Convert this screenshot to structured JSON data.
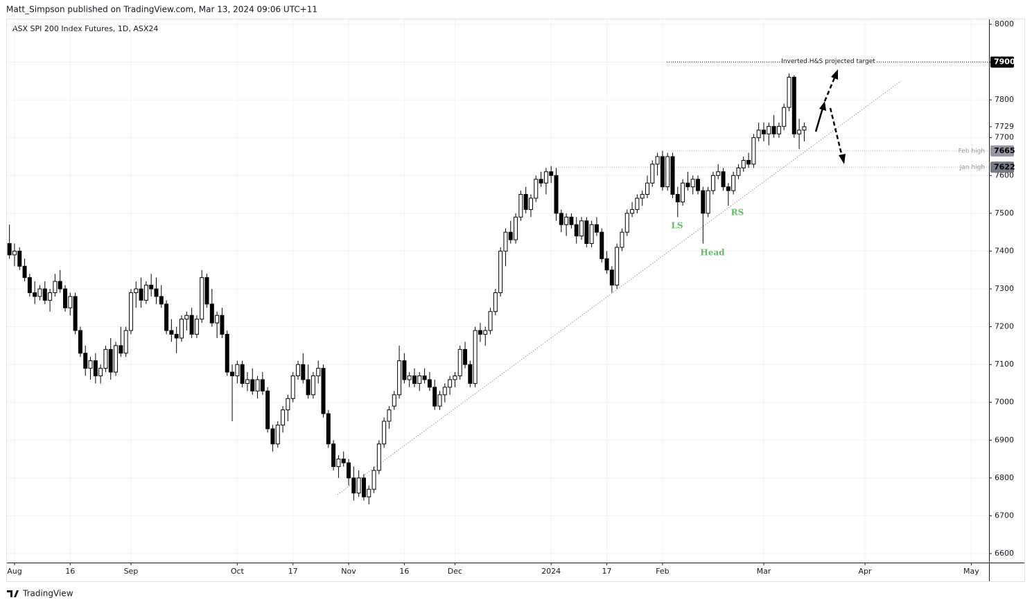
{
  "header": {
    "publisher": "Matt_Simpson published on TradingView.com, Mar 13, 2024 09:06 UTC+11",
    "footer": "TradingView"
  },
  "chart_data": {
    "type": "candlestick",
    "title": "ASX SPI 200 Index Futures, 1D, ASX24",
    "ylim": [
      6600,
      8000
    ],
    "yticks": [
      6600,
      6700,
      6800,
      6900,
      7000,
      7100,
      7200,
      7300,
      7400,
      7500,
      7600,
      7700,
      7800,
      7900,
      8000
    ],
    "xlim": [
      -0.5,
      193.5
    ],
    "xticks": [
      {
        "value": 1,
        "label": "Aug"
      },
      {
        "value": 12,
        "label": "16"
      },
      {
        "value": 24,
        "label": "Sep"
      },
      {
        "value": 45,
        "label": "Oct"
      },
      {
        "value": 56,
        "label": "17"
      },
      {
        "value": 67,
        "label": "Nov"
      },
      {
        "value": 78,
        "label": "16"
      },
      {
        "value": 88,
        "label": "Dec"
      },
      {
        "value": 107,
        "label": "2024"
      },
      {
        "value": 118,
        "label": "17"
      },
      {
        "value": 129,
        "label": "Feb"
      },
      {
        "value": 149,
        "label": "Mar"
      },
      {
        "value": 169,
        "label": "Apr"
      },
      {
        "value": 190,
        "label": "May"
      }
    ],
    "grid": true,
    "up_color": "#ffffff",
    "down_color": "#000000",
    "last_price": 7729,
    "levels": [
      {
        "label": "Inverted H&S projected target",
        "value": 7900
      },
      {
        "label": "Feb high",
        "value": 7665
      },
      {
        "label": "Jan high",
        "value": 7622
      }
    ],
    "annotations": [
      "LS",
      "Head",
      "RS"
    ],
    "ohlc": [
      [
        7420,
        7470,
        7380,
        7390
      ],
      [
        7390,
        7420,
        7360,
        7400
      ],
      [
        7400,
        7410,
        7350,
        7360
      ],
      [
        7360,
        7380,
        7320,
        7330
      ],
      [
        7330,
        7340,
        7280,
        7290
      ],
      [
        7290,
        7320,
        7260,
        7280
      ],
      [
        7280,
        7310,
        7270,
        7300
      ],
      [
        7300,
        7320,
        7260,
        7270
      ],
      [
        7270,
        7300,
        7240,
        7290
      ],
      [
        7290,
        7340,
        7280,
        7320
      ],
      [
        7320,
        7350,
        7290,
        7300
      ],
      [
        7300,
        7310,
        7240,
        7250
      ],
      [
        7250,
        7290,
        7230,
        7280
      ],
      [
        7280,
        7290,
        7180,
        7190
      ],
      [
        7190,
        7200,
        7120,
        7130
      ],
      [
        7130,
        7150,
        7070,
        7090
      ],
      [
        7090,
        7120,
        7060,
        7110
      ],
      [
        7110,
        7130,
        7050,
        7070
      ],
      [
        7070,
        7100,
        7050,
        7090
      ],
      [
        7090,
        7150,
        7080,
        7140
      ],
      [
        7140,
        7170,
        7060,
        7080
      ],
      [
        7080,
        7160,
        7070,
        7150
      ],
      [
        7150,
        7200,
        7120,
        7130
      ],
      [
        7130,
        7200,
        7120,
        7190
      ],
      [
        7190,
        7300,
        7180,
        7290
      ],
      [
        7290,
        7320,
        7250,
        7300
      ],
      [
        7300,
        7330,
        7250,
        7270
      ],
      [
        7270,
        7320,
        7260,
        7310
      ],
      [
        7310,
        7340,
        7280,
        7300
      ],
      [
        7300,
        7330,
        7260,
        7280
      ],
      [
        7280,
        7310,
        7250,
        7260
      ],
      [
        7260,
        7270,
        7180,
        7190
      ],
      [
        7190,
        7220,
        7160,
        7180
      ],
      [
        7180,
        7200,
        7130,
        7170
      ],
      [
        7170,
        7230,
        7160,
        7220
      ],
      [
        7220,
        7240,
        7190,
        7230
      ],
      [
        7230,
        7250,
        7170,
        7180
      ],
      [
        7180,
        7230,
        7170,
        7220
      ],
      [
        7220,
        7350,
        7210,
        7330
      ],
      [
        7330,
        7340,
        7250,
        7260
      ],
      [
        7260,
        7300,
        7200,
        7210
      ],
      [
        7210,
        7240,
        7170,
        7230
      ],
      [
        7230,
        7250,
        7170,
        7180
      ],
      [
        7180,
        7190,
        7070,
        7080
      ],
      [
        7080,
        7100,
        6950,
        7070
      ],
      [
        7070,
        7110,
        7050,
        7100
      ],
      [
        7100,
        7110,
        7040,
        7050
      ],
      [
        7050,
        7080,
        7030,
        7060
      ],
      [
        7060,
        7090,
        7020,
        7030
      ],
      [
        7030,
        7070,
        7010,
        7060
      ],
      [
        7060,
        7080,
        7020,
        7030
      ],
      [
        7030,
        7040,
        6920,
        6930
      ],
      [
        6930,
        6940,
        6870,
        6890
      ],
      [
        6890,
        6950,
        6880,
        6940
      ],
      [
        6940,
        6990,
        6920,
        6980
      ],
      [
        6980,
        7020,
        6950,
        7010
      ],
      [
        7010,
        7080,
        7000,
        7070
      ],
      [
        7070,
        7110,
        7060,
        7100
      ],
      [
        7100,
        7130,
        7050,
        7060
      ],
      [
        7060,
        7100,
        7010,
        7020
      ],
      [
        7020,
        7080,
        7010,
        7070
      ],
      [
        7070,
        7110,
        7050,
        7090
      ],
      [
        7090,
        7100,
        6960,
        6970
      ],
      [
        6970,
        6980,
        6880,
        6890
      ],
      [
        6890,
        6900,
        6820,
        6830
      ],
      [
        6830,
        6860,
        6800,
        6850
      ],
      [
        6850,
        6870,
        6830,
        6840
      ],
      [
        6840,
        6850,
        6780,
        6800
      ],
      [
        6800,
        6830,
        6740,
        6760
      ],
      [
        6760,
        6820,
        6750,
        6800
      ],
      [
        6800,
        6810,
        6740,
        6750
      ],
      [
        6750,
        6780,
        6730,
        6770
      ],
      [
        6770,
        6830,
        6760,
        6820
      ],
      [
        6820,
        6900,
        6810,
        6890
      ],
      [
        6890,
        6960,
        6880,
        6950
      ],
      [
        6950,
        6990,
        6930,
        6980
      ],
      [
        6990,
        7030,
        6980,
        7020
      ],
      [
        7020,
        7150,
        7010,
        7110
      ],
      [
        7110,
        7130,
        7050,
        7060
      ],
      [
        7060,
        7080,
        7040,
        7070
      ],
      [
        7070,
        7090,
        7040,
        7050
      ],
      [
        7050,
        7080,
        7030,
        7070
      ],
      [
        7070,
        7090,
        7050,
        7060
      ],
      [
        7060,
        7080,
        7030,
        7040
      ],
      [
        7040,
        7060,
        6980,
        6990
      ],
      [
        6990,
        7030,
        6980,
        7020
      ],
      [
        7020,
        7050,
        7000,
        7040
      ],
      [
        7040,
        7070,
        7020,
        7060
      ],
      [
        7060,
        7080,
        7040,
        7070
      ],
      [
        7070,
        7150,
        7060,
        7140
      ],
      [
        7140,
        7160,
        7090,
        7100
      ],
      [
        7100,
        7110,
        7040,
        7050
      ],
      [
        7050,
        7200,
        7040,
        7190
      ],
      [
        7190,
        7210,
        7160,
        7180
      ],
      [
        7180,
        7200,
        7150,
        7190
      ],
      [
        7190,
        7250,
        7180,
        7240
      ],
      [
        7240,
        7300,
        7230,
        7290
      ],
      [
        7290,
        7410,
        7280,
        7400
      ],
      [
        7400,
        7460,
        7360,
        7450
      ],
      [
        7450,
        7480,
        7420,
        7430
      ],
      [
        7430,
        7500,
        7420,
        7490
      ],
      [
        7490,
        7560,
        7480,
        7550
      ],
      [
        7550,
        7570,
        7500,
        7510
      ],
      [
        7510,
        7550,
        7490,
        7540
      ],
      [
        7540,
        7600,
        7530,
        7590
      ],
      [
        7590,
        7610,
        7570,
        7580
      ],
      [
        7580,
        7620,
        7550,
        7610
      ],
      [
        7610,
        7625,
        7580,
        7600
      ],
      [
        7600,
        7620,
        7480,
        7500
      ],
      [
        7500,
        7510,
        7450,
        7470
      ],
      [
        7470,
        7500,
        7440,
        7490
      ],
      [
        7490,
        7500,
        7460,
        7470
      ],
      [
        7470,
        7490,
        7420,
        7440
      ],
      [
        7440,
        7490,
        7430,
        7480
      ],
      [
        7480,
        7490,
        7410,
        7420
      ],
      [
        7420,
        7480,
        7410,
        7470
      ],
      [
        7470,
        7490,
        7440,
        7450
      ],
      [
        7450,
        7460,
        7370,
        7380
      ],
      [
        7380,
        7400,
        7340,
        7350
      ],
      [
        7350,
        7360,
        7290,
        7310
      ],
      [
        7310,
        7420,
        7300,
        7410
      ],
      [
        7410,
        7460,
        7400,
        7450
      ],
      [
        7450,
        7510,
        7440,
        7500
      ],
      [
        7500,
        7530,
        7490,
        7510
      ],
      [
        7510,
        7550,
        7500,
        7540
      ],
      [
        7540,
        7560,
        7520,
        7550
      ],
      [
        7550,
        7600,
        7540,
        7580
      ],
      [
        7580,
        7640,
        7570,
        7630
      ],
      [
        7630,
        7660,
        7600,
        7650
      ],
      [
        7650,
        7665,
        7560,
        7570
      ],
      [
        7570,
        7660,
        7560,
        7650
      ],
      [
        7650,
        7660,
        7540,
        7550
      ],
      [
        7550,
        7570,
        7490,
        7530
      ],
      [
        7530,
        7590,
        7520,
        7580
      ],
      [
        7580,
        7610,
        7560,
        7570
      ],
      [
        7570,
        7600,
        7550,
        7590
      ],
      [
        7590,
        7600,
        7550,
        7560
      ],
      [
        7560,
        7570,
        7420,
        7500
      ],
      [
        7500,
        7570,
        7490,
        7560
      ],
      [
        7560,
        7610,
        7550,
        7600
      ],
      [
        7600,
        7630,
        7590,
        7610
      ],
      [
        7610,
        7620,
        7560,
        7570
      ],
      [
        7570,
        7580,
        7520,
        7560
      ],
      [
        7560,
        7610,
        7550,
        7600
      ],
      [
        7600,
        7630,
        7590,
        7620
      ],
      [
        7620,
        7650,
        7610,
        7640
      ],
      [
        7640,
        7660,
        7620,
        7630
      ],
      [
        7630,
        7710,
        7620,
        7700
      ],
      [
        7700,
        7740,
        7690,
        7720
      ],
      [
        7720,
        7740,
        7690,
        7710
      ],
      [
        7710,
        7740,
        7680,
        7730
      ],
      [
        7730,
        7760,
        7700,
        7710
      ],
      [
        7710,
        7740,
        7700,
        7730
      ],
      [
        7730,
        7790,
        7720,
        7780
      ],
      [
        7780,
        7870,
        7770,
        7860
      ],
      [
        7860,
        7865,
        7700,
        7710
      ],
      [
        7710,
        7750,
        7670,
        7720
      ],
      [
        7720,
        7740,
        7690,
        7729
      ]
    ]
  }
}
